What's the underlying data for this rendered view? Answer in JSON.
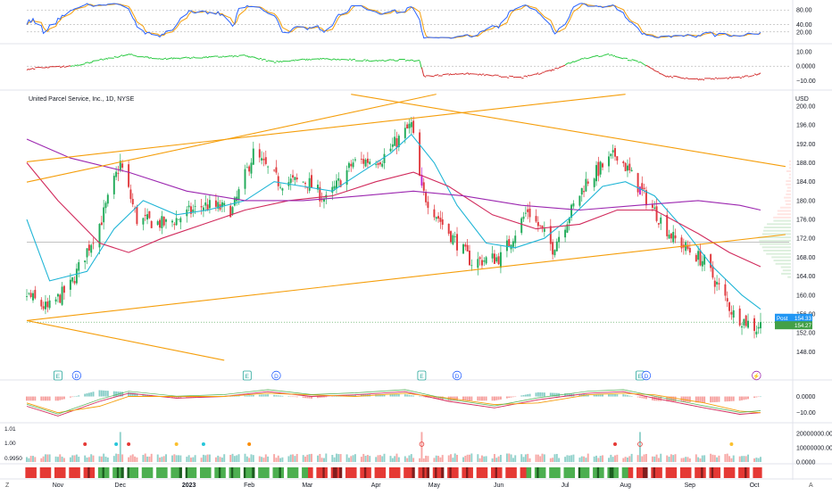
{
  "symbol": {
    "title": "United Parcel Service, Inc., 1D, NYSE",
    "currency": "USD"
  },
  "x_axis": {
    "labels": [
      "Nov",
      "Dec",
      "2023",
      "Feb",
      "Mar",
      "Apr",
      "May",
      "Jun",
      "Jul",
      "Aug",
      "Sep",
      "Oct"
    ],
    "corner_left": "Z",
    "corner_right": "A"
  },
  "colors": {
    "up": "#26a69a",
    "up_candle": "#22ab5a",
    "down": "#e03a3e",
    "ema_fast": "#1fb5d6",
    "ema_mid": "#d12a5c",
    "ema_slow": "#9c27b0",
    "trendline": "#f59e0b",
    "stoch_k": "#2962ff",
    "stoch_d": "#f59e0b",
    "osc_up": "#27c93f",
    "osc_down": "#d32f2f",
    "badge_post": "#2196f3",
    "badge_last": "#43a047"
  },
  "chart_data": [
    {
      "id": "price",
      "type": "candlestick",
      "title": "United Parcel Service, Inc., 1D, NYSE",
      "ylabel": "USD",
      "ylim": [
        146,
        203
      ],
      "y_ticks": [
        "200.00",
        "196.00",
        "192.00",
        "188.00",
        "184.00",
        "180.00",
        "176.00",
        "172.00",
        "168.00",
        "164.00",
        "160.00",
        "156.00",
        "152.00",
        "148.00"
      ],
      "price_labels": [
        {
          "label": "Post",
          "value": 154.33
        },
        {
          "label": "",
          "value": 154.27
        }
      ],
      "horizontal_levels": [
        171.2,
        154.27
      ],
      "events": [
        {
          "type": "earnings",
          "label": "E",
          "date": "2022-11-01"
        },
        {
          "type": "dividend",
          "label": "D",
          "date": "2022-11-10"
        },
        {
          "type": "earnings",
          "label": "E",
          "date": "2023-01-31"
        },
        {
          "type": "dividend",
          "label": "D",
          "date": "2023-02-14"
        },
        {
          "type": "earnings",
          "label": "E",
          "date": "2023-04-25"
        },
        {
          "type": "dividend",
          "label": "D",
          "date": "2023-05-12"
        },
        {
          "type": "earnings",
          "label": "E",
          "date": "2023-08-08"
        },
        {
          "type": "dividend",
          "label": "D",
          "date": "2023-08-11"
        },
        {
          "type": "split",
          "label": "⚡",
          "date": "2023-10-03"
        }
      ],
      "trendlines": [
        {
          "from": [
            "2022-10-17",
            183.9
          ],
          "to": [
            "2023-05-02",
            202.5
          ]
        },
        {
          "from": [
            "2022-10-17",
            188.2
          ],
          "to": [
            "2023-08-01",
            202.5
          ]
        },
        {
          "from": [
            "2023-03-22",
            202.5
          ],
          "to": [
            "2023-10-17",
            187.2
          ]
        },
        {
          "from": [
            "2022-10-17",
            154.6
          ],
          "to": [
            "2023-10-17",
            172.8
          ]
        },
        {
          "from": [
            "2022-10-17",
            154.6
          ],
          "to": [
            "2023-01-20",
            146.2
          ]
        }
      ],
      "series": [
        {
          "name": "",
          "kind": "ema",
          "color_key": "ema_fast",
          "points": [
            [
              "2022-10-17",
              176
            ],
            [
              "2022-10-28",
              163
            ],
            [
              "2022-11-15",
              165
            ],
            [
              "2022-11-28",
              174
            ],
            [
              "2022-12-12",
              180
            ],
            [
              "2022-12-28",
              177
            ],
            [
              "2023-01-12",
              178
            ],
            [
              "2023-01-30",
              180
            ],
            [
              "2023-02-13",
              184
            ],
            [
              "2023-02-27",
              183
            ],
            [
              "2023-03-13",
              182
            ],
            [
              "2023-03-27",
              186
            ],
            [
              "2023-04-10",
              190
            ],
            [
              "2023-04-20",
              194
            ],
            [
              "2023-05-01",
              188
            ],
            [
              "2023-05-12",
              179
            ],
            [
              "2023-05-26",
              171
            ],
            [
              "2023-06-09",
              170
            ],
            [
              "2023-06-23",
              172
            ],
            [
              "2023-07-07",
              177
            ],
            [
              "2023-07-21",
              183
            ],
            [
              "2023-08-01",
              184
            ],
            [
              "2023-08-15",
              181
            ],
            [
              "2023-08-29",
              174
            ],
            [
              "2023-09-12",
              166
            ],
            [
              "2023-09-26",
              160
            ],
            [
              "2023-10-05",
              157
            ]
          ]
        },
        {
          "name": "",
          "kind": "ema",
          "color_key": "ema_mid",
          "points": [
            [
              "2022-10-17",
              188
            ],
            [
              "2022-11-01",
              180
            ],
            [
              "2022-11-21",
              171
            ],
            [
              "2022-12-05",
              169
            ],
            [
              "2022-12-21",
              172
            ],
            [
              "2023-01-10",
              175
            ],
            [
              "2023-01-30",
              178
            ],
            [
              "2023-02-20",
              180
            ],
            [
              "2023-03-13",
              181
            ],
            [
              "2023-04-03",
              184
            ],
            [
              "2023-04-21",
              186
            ],
            [
              "2023-05-08",
              183
            ],
            [
              "2023-05-29",
              177
            ],
            [
              "2023-06-19",
              174
            ],
            [
              "2023-07-10",
              175
            ],
            [
              "2023-07-28",
              178
            ],
            [
              "2023-08-15",
              178
            ],
            [
              "2023-09-05",
              173
            ],
            [
              "2023-09-20",
              169
            ],
            [
              "2023-10-05",
              166
            ]
          ]
        },
        {
          "name": "",
          "kind": "ema",
          "color_key": "ema_slow",
          "points": [
            [
              "2022-10-17",
              193
            ],
            [
              "2022-11-07",
              189
            ],
            [
              "2022-12-05",
              186
            ],
            [
              "2023-01-02",
              182
            ],
            [
              "2023-01-30",
              180
            ],
            [
              "2023-02-27",
              180
            ],
            [
              "2023-03-27",
              181
            ],
            [
              "2023-04-21",
              182
            ],
            [
              "2023-05-15",
              181
            ],
            [
              "2023-06-12",
              179
            ],
            [
              "2023-07-10",
              178
            ],
            [
              "2023-08-07",
              179
            ],
            [
              "2023-09-05",
              180
            ],
            [
              "2023-09-25",
              179
            ],
            [
              "2023-10-05",
              178
            ]
          ]
        }
      ],
      "candle_keyframes": [
        [
          "2022-10-17",
          160
        ],
        [
          "2022-10-27",
          157
        ],
        [
          "2022-11-07",
          162
        ],
        [
          "2022-11-22",
          176
        ],
        [
          "2022-12-01",
          188
        ],
        [
          "2022-12-09",
          176
        ],
        [
          "2022-12-23",
          175
        ],
        [
          "2023-01-10",
          179
        ],
        [
          "2023-01-24",
          178
        ],
        [
          "2023-02-03",
          190
        ],
        [
          "2023-02-15",
          184
        ],
        [
          "2023-03-01",
          184
        ],
        [
          "2023-03-10",
          180
        ],
        [
          "2023-03-23",
          188
        ],
        [
          "2023-04-06",
          189
        ],
        [
          "2023-04-20",
          196
        ],
        [
          "2023-04-25",
          182
        ],
        [
          "2023-05-05",
          175
        ],
        [
          "2023-05-19",
          167
        ],
        [
          "2023-06-02",
          168
        ],
        [
          "2023-06-15",
          178
        ],
        [
          "2023-06-27",
          170
        ],
        [
          "2023-07-13",
          184
        ],
        [
          "2023-07-28",
          190
        ],
        [
          "2023-08-10",
          181
        ],
        [
          "2023-08-24",
          172
        ],
        [
          "2023-09-08",
          167
        ],
        [
          "2023-09-22",
          156
        ],
        [
          "2023-10-03",
          153
        ],
        [
          "2023-10-05",
          154.27
        ]
      ]
    },
    {
      "id": "stochastic",
      "type": "line",
      "ylim": [
        0,
        100
      ],
      "y_ticks": [
        "80.00",
        "40.00",
        "20.00"
      ],
      "series": [
        {
          "name": "",
          "color_key": "stoch_k"
        },
        {
          "name": "",
          "color_key": "stoch_d"
        }
      ]
    },
    {
      "id": "oscillator",
      "type": "line",
      "ylim": [
        -14,
        13
      ],
      "y_ticks": [
        "10.00",
        "0.0000",
        "−10.00"
      ],
      "series": [
        {
          "name": "",
          "colored_by_sign": true,
          "points": [
            [
              "2022-10-17",
              -2
            ],
            [
              "2022-11-07",
              0
            ],
            [
              "2022-11-28",
              6
            ],
            [
              "2022-12-05",
              8
            ],
            [
              "2022-12-19",
              5
            ],
            [
              "2023-01-09",
              6
            ],
            [
              "2023-01-30",
              7
            ],
            [
              "2023-02-13",
              3
            ],
            [
              "2023-03-06",
              5
            ],
            [
              "2023-03-27",
              4
            ],
            [
              "2023-04-24",
              4
            ],
            [
              "2023-04-26",
              -7
            ],
            [
              "2023-05-15",
              -5
            ],
            [
              "2023-06-12",
              -8
            ],
            [
              "2023-06-26",
              -3
            ],
            [
              "2023-07-10",
              5
            ],
            [
              "2023-07-24",
              8
            ],
            [
              "2023-08-07",
              3
            ],
            [
              "2023-08-21",
              -7
            ],
            [
              "2023-09-05",
              -9
            ],
            [
              "2023-09-25",
              -8
            ],
            [
              "2023-10-05",
              -5
            ]
          ]
        }
      ]
    },
    {
      "id": "macd",
      "type": "bar+line",
      "ylim": [
        -14,
        8
      ],
      "y_ticks": [
        "0.0000",
        "−10.00"
      ],
      "series": [
        {
          "name": "",
          "kind": "histogram"
        },
        {
          "name": "",
          "kind": "macd",
          "points": [
            [
              "2022-10-17",
              -6
            ],
            [
              "2022-11-01",
              -12
            ],
            [
              "2022-11-21",
              -3
            ],
            [
              "2022-12-05",
              2
            ],
            [
              "2022-12-28",
              -1
            ],
            [
              "2023-01-20",
              0
            ],
            [
              "2023-02-10",
              3
            ],
            [
              "2023-03-03",
              0
            ],
            [
              "2023-03-24",
              1
            ],
            [
              "2023-04-17",
              3
            ],
            [
              "2023-05-08",
              -3
            ],
            [
              "2023-05-30",
              -7
            ],
            [
              "2023-06-20",
              -2
            ],
            [
              "2023-07-14",
              2
            ],
            [
              "2023-07-31",
              3
            ],
            [
              "2023-08-15",
              -1
            ],
            [
              "2023-09-08",
              -7
            ],
            [
              "2023-09-25",
              -11
            ],
            [
              "2023-10-05",
              -10
            ]
          ]
        },
        {
          "name": "",
          "kind": "signal",
          "points": [
            [
              "2022-10-17",
              -4
            ],
            [
              "2022-11-01",
              -10
            ],
            [
              "2022-11-21",
              -6
            ],
            [
              "2022-12-05",
              0
            ],
            [
              "2022-12-28",
              0
            ],
            [
              "2023-01-20",
              0
            ],
            [
              "2023-02-10",
              2
            ],
            [
              "2023-03-03",
              1
            ],
            [
              "2023-03-24",
              0
            ],
            [
              "2023-04-17",
              2
            ],
            [
              "2023-05-08",
              -1
            ],
            [
              "2023-05-30",
              -5
            ],
            [
              "2023-06-20",
              -4
            ],
            [
              "2023-07-14",
              1
            ],
            [
              "2023-07-31",
              2
            ],
            [
              "2023-08-15",
              1
            ],
            [
              "2023-09-08",
              -4
            ],
            [
              "2023-09-25",
              -9
            ],
            [
              "2023-10-05",
              -10
            ]
          ]
        }
      ]
    },
    {
      "id": "volume",
      "type": "bar",
      "ylim": [
        0,
        25000000
      ],
      "y_ticks_right": [
        "20000000.00",
        "10000000.00",
        "0.0000"
      ],
      "y_ticks_left": [
        "1.01",
        "1.00",
        "0.9950"
      ],
      "spike_dates": [
        "2022-12-01",
        "2023-04-25",
        "2023-08-08"
      ],
      "markers": [
        {
          "date": "2022-11-14",
          "color": "#e53935"
        },
        {
          "date": "2022-11-29",
          "color": "#26c6da"
        },
        {
          "date": "2022-12-05",
          "color": "#e53935"
        },
        {
          "date": "2022-12-28",
          "color": "#fbc02d"
        },
        {
          "date": "2023-01-10",
          "color": "#26c6da"
        },
        {
          "date": "2023-02-01",
          "color": "#fb8c00"
        },
        {
          "date": "2023-07-27",
          "color": "#e53935"
        },
        {
          "date": "2023-09-21",
          "color": "#fbc02d"
        }
      ]
    },
    {
      "id": "trend-strip",
      "type": "heatmap",
      "segments": [
        {
          "from": "2022-10-17",
          "to": "2022-11-18",
          "state": "down"
        },
        {
          "from": "2022-11-21",
          "to": "2023-03-01",
          "state": "up"
        },
        {
          "from": "2023-03-02",
          "to": "2023-06-14",
          "state": "down"
        },
        {
          "from": "2023-06-15",
          "to": "2023-08-02",
          "state": "up"
        },
        {
          "from": "2023-08-03",
          "to": "2023-10-05",
          "state": "down"
        }
      ]
    }
  ]
}
